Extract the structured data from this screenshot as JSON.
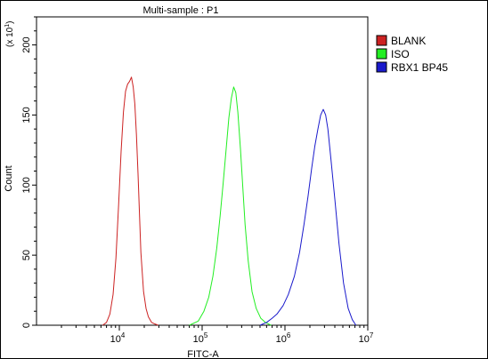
{
  "chart_data": {
    "type": "line",
    "title": "Multi-sample : P1",
    "xlabel": "FITC-A",
    "ylabel": "Count",
    "y_multiplier_label": "(x 10",
    "y_multiplier_exp": "1",
    "y_multiplier_close": ")",
    "x_scale": "log",
    "xlim": [
      1000,
      10000000
    ],
    "ylim": [
      0,
      220
    ],
    "x_ticks": [
      {
        "base": "10",
        "exp": "4",
        "value": 10000
      },
      {
        "base": "10",
        "exp": "5",
        "value": 100000
      },
      {
        "base": "10",
        "exp": "6",
        "value": 1000000
      },
      {
        "base": "10",
        "exp": "7",
        "value": 10000000
      }
    ],
    "y_ticks": [
      {
        "label": "0",
        "value": 0
      },
      {
        "label": "50",
        "value": 50
      },
      {
        "label": "100",
        "value": 100
      },
      {
        "label": "150",
        "value": 150
      },
      {
        "label": "200",
        "value": 200
      }
    ],
    "legend_position": "top-right",
    "series": [
      {
        "name": "BLANK",
        "color": "#cc2222",
        "x": [
          6300,
          7000,
          7700,
          8400,
          9100,
          9800,
          10500,
          11200,
          11900,
          12600,
          13300,
          14000,
          14700,
          15400,
          16100,
          16800,
          17500,
          18200,
          19600,
          21000,
          22400,
          24500,
          26600,
          29400
        ],
        "y": [
          0,
          2,
          8,
          22,
          48,
          86,
          124,
          152,
          167,
          172,
          174,
          177,
          170,
          158,
          136,
          108,
          80,
          52,
          24,
          12,
          6,
          2,
          1,
          0
        ]
      },
      {
        "name": "ISO",
        "color": "#22ee22",
        "x": [
          70000,
          90000,
          105000,
          120000,
          135000,
          150000,
          165000,
          180000,
          195000,
          210000,
          225000,
          240000,
          255000,
          270000,
          290000,
          310000,
          330000,
          360000,
          400000,
          450000,
          510000,
          580000,
          680000
        ],
        "y": [
          0,
          3,
          10,
          20,
          35,
          55,
          78,
          102,
          126,
          148,
          162,
          170,
          166,
          152,
          126,
          98,
          72,
          46,
          24,
          12,
          5,
          2,
          0
        ]
      },
      {
        "name": "RBX1 BP45",
        "color": "#1a1acc",
        "x": [
          500000,
          600000,
          700000,
          800000,
          950000,
          1100000,
          1300000,
          1500000,
          1700000,
          1900000,
          2100000,
          2300000,
          2500000,
          2700000,
          2900000,
          3100000,
          3300000,
          3600000,
          4000000,
          4500000,
          5100000,
          5800000,
          6500000,
          7200000
        ],
        "y": [
          0,
          2,
          5,
          8,
          14,
          22,
          35,
          52,
          72,
          92,
          112,
          128,
          140,
          150,
          154,
          150,
          140,
          118,
          90,
          58,
          30,
          12,
          4,
          0
        ]
      }
    ]
  }
}
